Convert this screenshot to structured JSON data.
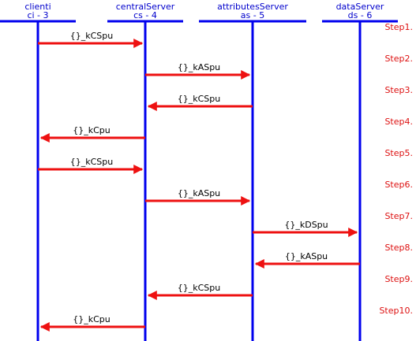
{
  "colors": {
    "lifeline": "#0000ee",
    "arrow": "#ee1111",
    "actor_text": "#0000cc",
    "step_text": "#dd1111",
    "message_text": "#000000"
  },
  "actors": [
    {
      "id": "clienti",
      "name": "clienti",
      "alias": "ci - 3"
    },
    {
      "id": "central",
      "name": "centralServer",
      "alias": "cs - 4"
    },
    {
      "id": "attributes",
      "name": "attributesServer",
      "alias": "as - 5"
    },
    {
      "id": "data",
      "name": "dataServer",
      "alias": "ds - 6"
    }
  ],
  "messages": [
    {
      "from": 0,
      "to": 1,
      "label": "{}_kCSpu",
      "step": "Step1."
    },
    {
      "from": 1,
      "to": 2,
      "label": "{}_kASpu",
      "step": "Step2."
    },
    {
      "from": 2,
      "to": 1,
      "label": "{}_kCSpu",
      "step": "Step3."
    },
    {
      "from": 1,
      "to": 0,
      "label": "{}_kCpu",
      "step": "Step4."
    },
    {
      "from": 0,
      "to": 1,
      "label": "{}_kCSpu",
      "step": "Step5."
    },
    {
      "from": 1,
      "to": 2,
      "label": "{}_kASpu",
      "step": "Step6."
    },
    {
      "from": 2,
      "to": 3,
      "label": "{}_kDSpu",
      "step": "Step7."
    },
    {
      "from": 3,
      "to": 2,
      "label": "{}_kASpu",
      "step": "Step8."
    },
    {
      "from": 2,
      "to": 1,
      "label": "{}_kCSpu",
      "step": "Step9."
    },
    {
      "from": 1,
      "to": 0,
      "label": "{}_kCpu",
      "step": "Step10."
    }
  ]
}
